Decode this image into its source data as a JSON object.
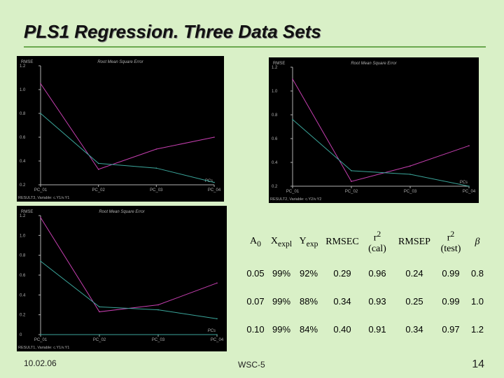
{
  "slide": {
    "title": "PLS1 Regression. Three Data Sets",
    "footer_date": "10.02.06",
    "footer_center": "WSC-5",
    "page_number": "14"
  },
  "colors": {
    "background": "#d9f0c7",
    "panel_bg": "#000000",
    "series1": "#c63fb0",
    "series2": "#3aa59a",
    "grid_text": "#b0b0b0"
  },
  "chart_data": [
    {
      "type": "line",
      "title": "Root Mean Square Error",
      "ylabel": "RMSE",
      "xlabel": "PCs",
      "categories": [
        "PC_01",
        "PC_02",
        "PC_03",
        "PC_04"
      ],
      "yticks": [
        "0.2",
        "0.4",
        "0.6",
        "0.8",
        "1.0",
        "1.2"
      ],
      "ylim": [
        0.2,
        1.2
      ],
      "footer": "RESULT3, Variable: c.Y1/v.Y1",
      "series": [
        {
          "color": "#c63fb0",
          "values": [
            1.05,
            0.33,
            0.5,
            0.6
          ]
        },
        {
          "color": "#3aa59a",
          "values": [
            0.8,
            0.38,
            0.34,
            0.22
          ]
        }
      ]
    },
    {
      "type": "line",
      "title": "Root Mean Square Error",
      "ylabel": "RMSE",
      "xlabel": "PCs",
      "categories": [
        "PC_01",
        "PC_02",
        "PC_03",
        "PC_04"
      ],
      "yticks": [
        "0.2",
        "0.4",
        "0.6",
        "0.8",
        "1.0",
        "1.2"
      ],
      "ylim": [
        0.2,
        1.2
      ],
      "footer": "RESULT2, Variable: c.Y2/v.Y2",
      "series": [
        {
          "color": "#c63fb0",
          "values": [
            1.1,
            0.24,
            0.37,
            0.54
          ]
        },
        {
          "color": "#3aa59a",
          "values": [
            0.76,
            0.33,
            0.3,
            0.2
          ]
        }
      ]
    },
    {
      "type": "line",
      "title": "Root Mean Square Error",
      "ylabel": "RMSE",
      "xlabel": "PCs",
      "categories": [
        "PC_01",
        "PC_02",
        "PC_03",
        "PC_04"
      ],
      "yticks": [
        "0",
        "0.2",
        "0.4",
        "0.6",
        "0.8",
        "1.0",
        "1.2"
      ],
      "ylim": [
        0,
        1.2
      ],
      "footer": "RESULT1, Variable: c.Y1/v.Y1",
      "series": [
        {
          "color": "#c63fb0",
          "values": [
            1.18,
            0.23,
            0.3,
            0.52
          ]
        },
        {
          "color": "#3aa59a",
          "values": [
            0.74,
            0.28,
            0.25,
            0.16
          ]
        },
        {
          "color": "#3aa59a",
          "values": [
            0,
            0,
            0,
            0
          ]
        }
      ]
    }
  ],
  "table": {
    "headers": [
      {
        "main": "A",
        "sub": "0",
        "below": ""
      },
      {
        "main": "X",
        "sub": "expl",
        "below": ""
      },
      {
        "main": "Y",
        "sub": "exp",
        "below": ""
      },
      {
        "main": "RMSEC",
        "sub": "",
        "below": ""
      },
      {
        "main": "r",
        "sup": "2",
        "below": "(cal)"
      },
      {
        "main": "RMSEP",
        "sub": "",
        "below": ""
      },
      {
        "main": "r",
        "sup": "2",
        "below": "(test)"
      },
      {
        "main": "β",
        "sub": "",
        "below": ""
      }
    ],
    "rows": [
      [
        "0.05",
        "99%",
        "92%",
        "0.29",
        "0.96",
        "0.24",
        "0.99",
        "0.8"
      ],
      [
        "0.07",
        "99%",
        "88%",
        "0.34",
        "0.93",
        "0.25",
        "0.99",
        "1.0"
      ],
      [
        "0.10",
        "99%",
        "84%",
        "0.40",
        "0.91",
        "0.34",
        "0.97",
        "1.2"
      ]
    ]
  }
}
